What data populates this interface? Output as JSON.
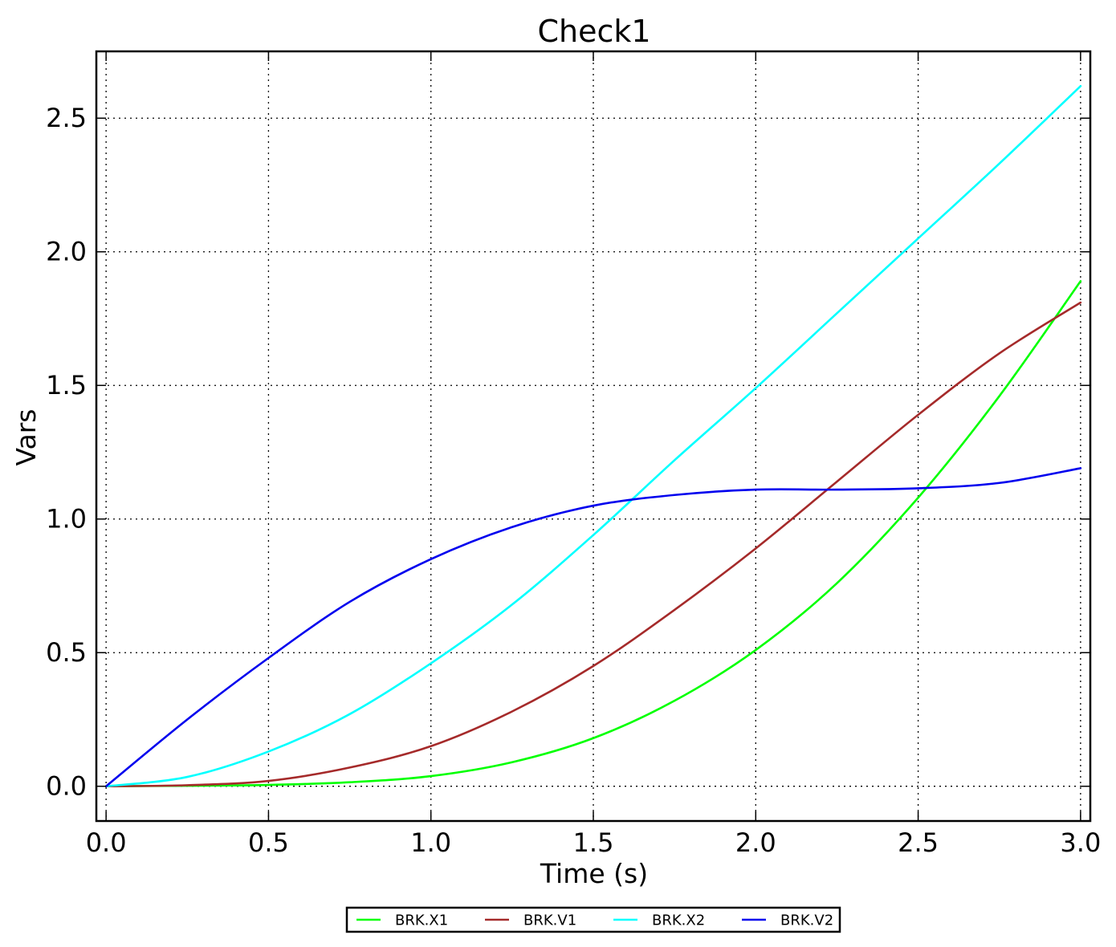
{
  "chart_data": {
    "type": "line",
    "title": "Check1",
    "xlabel": "Time (s)",
    "ylabel": "Vars",
    "xlim": [
      -0.03,
      3.03
    ],
    "ylim": [
      -0.13,
      2.75
    ],
    "grid": true,
    "legend_position": "bottom-center",
    "x_ticks": [
      0.0,
      0.5,
      1.0,
      1.5,
      2.0,
      2.5,
      3.0
    ],
    "x_tick_labels": [
      "0.0",
      "0.5",
      "1.0",
      "1.5",
      "2.0",
      "2.5",
      "3.0"
    ],
    "y_ticks": [
      0.0,
      0.5,
      1.0,
      1.5,
      2.0,
      2.5
    ],
    "y_tick_labels": [
      "0.0",
      "0.5",
      "1.0",
      "1.5",
      "2.0",
      "2.5"
    ],
    "x": [
      0.0,
      0.25,
      0.5,
      0.75,
      1.0,
      1.25,
      1.5,
      1.75,
      2.0,
      2.25,
      2.5,
      2.75,
      3.0
    ],
    "series": [
      {
        "name": "BRK.X1",
        "color": "#00ff00",
        "values": [
          0.0,
          0.002,
          0.005,
          0.015,
          0.038,
          0.09,
          0.18,
          0.32,
          0.51,
          0.76,
          1.08,
          1.46,
          1.89
        ]
      },
      {
        "name": "BRK.V1",
        "color": "#a52a2a",
        "values": [
          0.0,
          0.004,
          0.02,
          0.07,
          0.15,
          0.28,
          0.45,
          0.66,
          0.89,
          1.14,
          1.39,
          1.62,
          1.81
        ]
      },
      {
        "name": "BRK.X2",
        "color": "#00ffff",
        "values": [
          0.0,
          0.035,
          0.13,
          0.27,
          0.46,
          0.68,
          0.94,
          1.22,
          1.49,
          1.77,
          2.05,
          2.33,
          2.62
        ]
      },
      {
        "name": "BRK.V2",
        "color": "#0000ee",
        "values": [
          0.0,
          0.25,
          0.48,
          0.69,
          0.85,
          0.97,
          1.05,
          1.09,
          1.11,
          1.11,
          1.115,
          1.135,
          1.19
        ]
      }
    ]
  }
}
